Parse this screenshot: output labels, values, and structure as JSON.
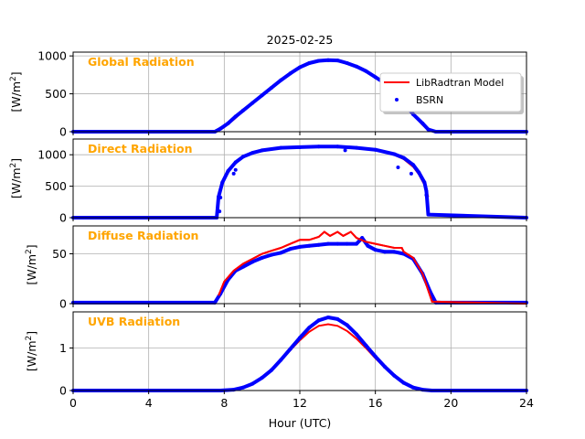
{
  "figure": {
    "title": "2025-02-25",
    "xlabel": "Hour (UTC)"
  },
  "legend": {
    "placement": "top-right of first panel",
    "entries": [
      {
        "label": "LibRadtran Model",
        "color": "#ff0000",
        "kind": "line"
      },
      {
        "label": "BSRN",
        "color": "#0000ff",
        "kind": "marker"
      }
    ]
  },
  "colors": {
    "model": "#ff0000",
    "bsrn": "#0000ff",
    "panel_label": "#ffa500",
    "grid": "#b0b0b0"
  },
  "chart_data": [
    {
      "type": "line",
      "title": "Global Radiation",
      "ylabel": "[W/m2]",
      "xlim": [
        0,
        24
      ],
      "ylim": [
        0,
        1050
      ],
      "xticks": [
        0,
        4,
        8,
        12,
        16,
        20,
        24
      ],
      "yticks": [
        0,
        500,
        1000
      ],
      "grid": true,
      "series": [
        {
          "name": "LibRadtran Model",
          "x": [
            0,
            7.6,
            8.0,
            8.5,
            9,
            9.5,
            10,
            10.5,
            11,
            11.5,
            12,
            12.5,
            13,
            13.5,
            14,
            14.5,
            15,
            15.5,
            16,
            16.5,
            17,
            17.5,
            18,
            18.5,
            18.8,
            19.2,
            24
          ],
          "y": [
            0,
            0,
            60,
            160,
            270,
            380,
            480,
            580,
            680,
            770,
            850,
            910,
            940,
            950,
            940,
            910,
            860,
            800,
            720,
            620,
            500,
            370,
            230,
            90,
            20,
            0,
            0
          ]
        },
        {
          "name": "BSRN",
          "x": [
            0,
            7.5,
            7.8,
            8.2,
            8.6,
            9,
            9.5,
            10,
            10.5,
            11,
            11.5,
            12,
            12.5,
            13,
            13.5,
            14,
            14.5,
            15,
            15.5,
            16,
            16.5,
            17,
            17.5,
            18,
            18.5,
            18.8,
            19.2,
            24
          ],
          "y": [
            0,
            0,
            40,
            110,
            200,
            280,
            380,
            480,
            580,
            680,
            770,
            850,
            905,
            935,
            945,
            940,
            905,
            860,
            800,
            720,
            640,
            520,
            380,
            230,
            110,
            30,
            0,
            0
          ]
        }
      ]
    },
    {
      "type": "line",
      "title": "Direct Radiation",
      "ylabel": "[W/m2]",
      "xlim": [
        0,
        24
      ],
      "ylim": [
        0,
        1250
      ],
      "xticks": [
        0,
        4,
        8,
        12,
        16,
        20,
        24
      ],
      "yticks": [
        0,
        500,
        1000
      ],
      "grid": true,
      "series": [
        {
          "name": "LibRadtran Model",
          "x": [
            7.7,
            7.9,
            8.2,
            8.6,
            9,
            9.5,
            10,
            11,
            12,
            13,
            14,
            15,
            16,
            17,
            17.5,
            18,
            18.3,
            18.6,
            18.8
          ],
          "y": [
            330,
            540,
            720,
            870,
            960,
            1020,
            1060,
            1100,
            1120,
            1130,
            1130,
            1110,
            1070,
            1000,
            930,
            810,
            690,
            520,
            330
          ]
        },
        {
          "name": "BSRN",
          "x": [
            0,
            7.6,
            7.7,
            7.9,
            8.2,
            8.6,
            9,
            9.5,
            10,
            11,
            12,
            13,
            14,
            15,
            16,
            17,
            17.5,
            18,
            18.3,
            18.6,
            18.7,
            18.8,
            24
          ],
          "y": [
            0,
            0,
            330,
            560,
            740,
            880,
            970,
            1030,
            1070,
            1110,
            1120,
            1130,
            1130,
            1110,
            1080,
            1010,
            950,
            840,
            720,
            560,
            420,
            50,
            0
          ]
        }
      ],
      "outliers_bsrn": {
        "x": [
          7.75,
          7.8,
          8.5,
          8.6,
          14.4,
          17.2,
          17.9,
          18.7
        ],
        "y": [
          100,
          320,
          700,
          760,
          1070,
          800,
          700,
          360
        ]
      }
    },
    {
      "type": "line",
      "title": "Diffuse Radiation",
      "ylabel": "[W/m2]",
      "xlim": [
        0,
        24
      ],
      "ylim": [
        0,
        78
      ],
      "xticks": [
        0,
        4,
        8,
        12,
        16,
        20,
        24
      ],
      "yticks": [
        0,
        50
      ],
      "grid": true,
      "series": [
        {
          "name": "LibRadtran Model",
          "x": [
            7.7,
            8,
            8.5,
            9,
            9.5,
            10,
            10.5,
            11,
            11.5,
            12,
            12.5,
            13,
            13.3,
            13.6,
            14,
            14.3,
            14.7,
            15,
            15.5,
            16,
            16.5,
            17,
            17.4,
            17.5,
            18,
            18.5,
            19,
            24
          ],
          "y": [
            8,
            22,
            33,
            40,
            45,
            50,
            53,
            56,
            60,
            64,
            64,
            67,
            72,
            68,
            72,
            68,
            72,
            66,
            62,
            60,
            58,
            56,
            56,
            52,
            46,
            30,
            2,
            0
          ]
        },
        {
          "name": "BSRN",
          "x": [
            0,
            7.5,
            7.8,
            8.2,
            8.6,
            9,
            9.5,
            10,
            10.5,
            11,
            11.5,
            12,
            12.5,
            13,
            13.5,
            14,
            14.5,
            15,
            15.3,
            15.6,
            16,
            16.5,
            17,
            17.5,
            18,
            18.5,
            18.9,
            19.2,
            24
          ],
          "y": [
            1,
            1,
            10,
            24,
            33,
            37,
            42,
            46,
            49,
            51,
            55,
            57,
            58,
            59,
            60,
            60,
            60,
            60,
            66,
            58,
            54,
            52,
            52,
            50,
            45,
            30,
            12,
            1,
            1
          ]
        }
      ]
    },
    {
      "type": "line",
      "title": "UVB Radiation",
      "ylabel": "[W/m2]",
      "xlim": [
        0,
        24
      ],
      "ylim": [
        0,
        1.85
      ],
      "xticks": [
        0,
        4,
        8,
        12,
        16,
        20,
        24
      ],
      "yticks": [
        0,
        1
      ],
      "grid": true,
      "series": [
        {
          "name": "LibRadtran Model",
          "x": [
            0,
            7.8,
            8.5,
            9,
            9.5,
            10,
            10.5,
            11,
            11.5,
            12,
            12.5,
            13,
            13.5,
            14,
            14.5,
            15,
            15.5,
            16,
            16.5,
            17,
            17.5,
            18,
            18.5,
            19,
            24
          ],
          "y": [
            0,
            0,
            0.02,
            0.07,
            0.16,
            0.3,
            0.48,
            0.7,
            0.95,
            1.18,
            1.38,
            1.52,
            1.56,
            1.52,
            1.4,
            1.22,
            1.0,
            0.76,
            0.54,
            0.34,
            0.18,
            0.07,
            0.02,
            0,
            0
          ]
        },
        {
          "name": "BSRN",
          "x": [
            0,
            7.8,
            8.5,
            9,
            9.5,
            10,
            10.5,
            11,
            11.5,
            12,
            12.5,
            13,
            13.5,
            14,
            14.5,
            15,
            15.5,
            16,
            16.5,
            17,
            17.5,
            18,
            18.5,
            19,
            24
          ],
          "y": [
            0,
            0,
            0.02,
            0.07,
            0.16,
            0.3,
            0.48,
            0.72,
            0.98,
            1.24,
            1.48,
            1.65,
            1.72,
            1.68,
            1.54,
            1.32,
            1.06,
            0.8,
            0.56,
            0.35,
            0.18,
            0.07,
            0.02,
            0,
            0
          ]
        }
      ]
    }
  ]
}
